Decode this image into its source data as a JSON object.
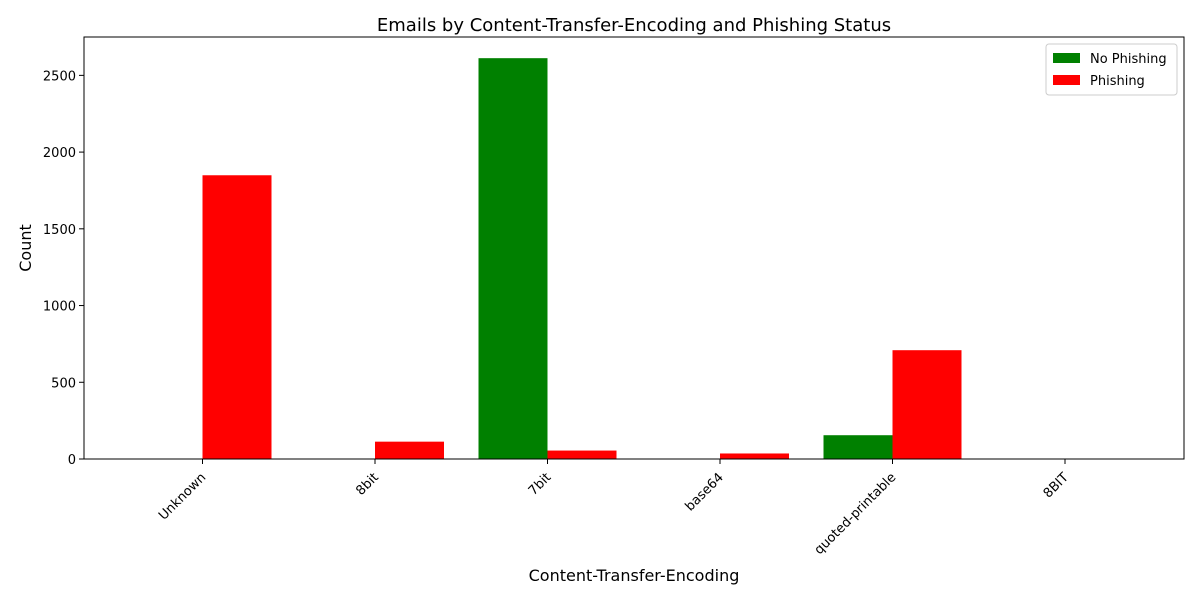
{
  "chart_data": {
    "type": "bar",
    "title": "Emails by Content-Transfer-Encoding and Phishing Status",
    "xlabel": "Content-Transfer-Encoding",
    "ylabel": "Count",
    "categories": [
      "Unknown",
      "8bit",
      "7bit",
      "base64",
      "quoted-printable",
      "8BIT"
    ],
    "series": [
      {
        "name": "No Phishing",
        "color": "#008000",
        "values": [
          3,
          0,
          2612,
          0,
          155,
          0
        ]
      },
      {
        "name": "Phishing",
        "color": "#ff0000",
        "values": [
          1849,
          113,
          55,
          36,
          709,
          2
        ]
      }
    ],
    "ylim": [
      0,
      2750
    ],
    "yticks": [
      0,
      500,
      1000,
      1500,
      2000,
      2500
    ],
    "legend": "top-right",
    "grid": false
  }
}
